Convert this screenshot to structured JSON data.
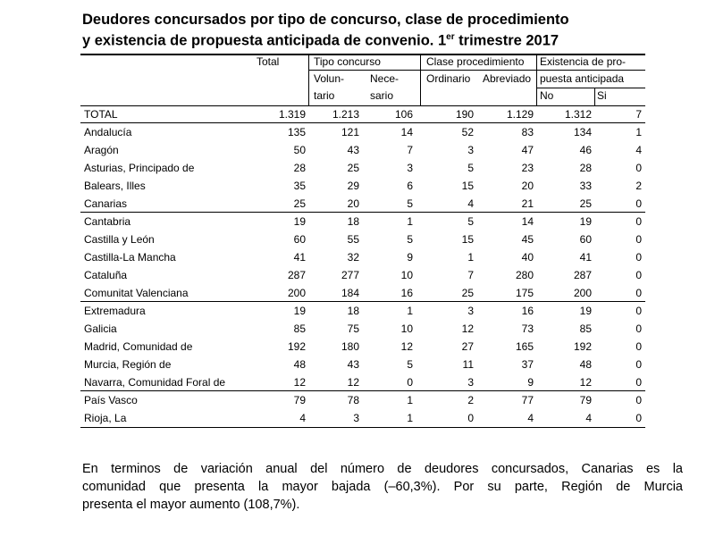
{
  "title": {
    "line1": "Deudores concursados por tipo de concurso, clase de procedimiento",
    "line2": "y existencia de propuesta anticipada de convenio. 1",
    "sup": "er",
    "line2_end": " trimestre 2017"
  },
  "table": {
    "header": {
      "total": "Total",
      "tipo": "Tipo concurso",
      "clase": "Clase procedimiento",
      "existencia": "Existencia de pro-",
      "voluntario_1": "Volun-",
      "voluntario_2": "tario",
      "necesario_1": "Nece-",
      "necesario_2": "sario",
      "ordinario": "Ordinario",
      "abreviado": "Abreviado",
      "existencia_2": "puesta anticipada",
      "no": "No",
      "si": "Si"
    },
    "rows": [
      [
        "TOTAL",
        "1.319",
        "1.213",
        "106",
        "190",
        "1.129",
        "1.312",
        "7"
      ],
      [
        "Andalucía",
        "135",
        "121",
        "14",
        "52",
        "83",
        "134",
        "1"
      ],
      [
        "Aragón",
        "50",
        "43",
        "7",
        "3",
        "47",
        "46",
        "4"
      ],
      [
        "Asturias, Principado de",
        "28",
        "25",
        "3",
        "5",
        "23",
        "28",
        "0"
      ],
      [
        "Balears, Illes",
        "35",
        "29",
        "6",
        "15",
        "20",
        "33",
        "2"
      ],
      [
        "Canarias",
        "25",
        "20",
        "5",
        "4",
        "21",
        "25",
        "0"
      ],
      [
        "Cantabria",
        "19",
        "18",
        "1",
        "5",
        "14",
        "19",
        "0"
      ],
      [
        "Castilla y León",
        "60",
        "55",
        "5",
        "15",
        "45",
        "60",
        "0"
      ],
      [
        "Castilla-La Mancha",
        "41",
        "32",
        "9",
        "1",
        "40",
        "41",
        "0"
      ],
      [
        "Cataluña",
        "287",
        "277",
        "10",
        "7",
        "280",
        "287",
        "0"
      ],
      [
        "Comunitat Valenciana",
        "200",
        "184",
        "16",
        "25",
        "175",
        "200",
        "0"
      ],
      [
        "Extremadura",
        "19",
        "18",
        "1",
        "3",
        "16",
        "19",
        "0"
      ],
      [
        "Galicia",
        "85",
        "75",
        "10",
        "12",
        "73",
        "85",
        "0"
      ],
      [
        "Madrid, Comunidad de",
        "192",
        "180",
        "12",
        "27",
        "165",
        "192",
        "0"
      ],
      [
        "Murcia, Región de",
        "48",
        "43",
        "5",
        "11",
        "37",
        "48",
        "0"
      ],
      [
        "Navarra, Comunidad Foral de",
        "12",
        "12",
        "0",
        "3",
        "9",
        "12",
        "0"
      ],
      [
        "País Vasco",
        "79",
        "78",
        "1",
        "2",
        "77",
        "79",
        "0"
      ],
      [
        "Rioja, La",
        "4",
        "3",
        "1",
        "0",
        "4",
        "4",
        "0"
      ]
    ]
  },
  "paragraph": [
    "En terminos de variación anual del número de deudores concursados, Canarias es la",
    "comunidad que presenta la mayor bajada (–60,3%). Por su parte, Región de Murcia",
    "presenta el mayor aumento (108,7%)."
  ]
}
